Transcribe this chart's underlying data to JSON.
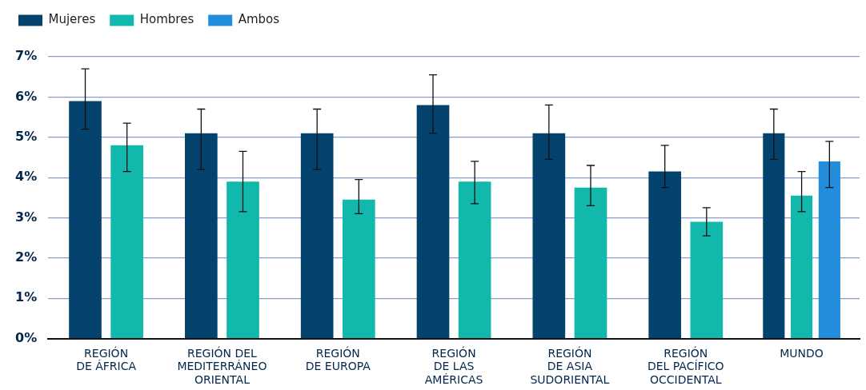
{
  "chart_data": {
    "type": "bar",
    "categories": [
      "REGIÓN\nDE ÁFRICA",
      "REGIÓN DEL\nMEDITERRÁNEO\nORIENTAL",
      "REGIÓN\nDE EUROPA",
      "REGIÓN\nDE LAS\nAMÉRICAS",
      "REGIÓN\nDE ASIA\nSUDORIENTAL",
      "REGIÓN\nDEL PACÍFICO\nOCCIDENTAL",
      "MUNDO"
    ],
    "series": [
      {
        "name": "Mujeres",
        "color": "#03436e",
        "values": [
          5.9,
          5.1,
          5.1,
          5.8,
          5.1,
          4.15,
          5.1
        ],
        "errors": [
          [
            5.2,
            6.7
          ],
          [
            4.2,
            5.7
          ],
          [
            4.2,
            5.7
          ],
          [
            5.1,
            6.55
          ],
          [
            4.45,
            5.8
          ],
          [
            3.75,
            4.8
          ],
          [
            4.45,
            5.7
          ]
        ]
      },
      {
        "name": "Hombres",
        "color": "#12b8ac",
        "values": [
          4.8,
          3.9,
          3.45,
          3.9,
          3.75,
          2.9,
          3.55
        ],
        "errors": [
          [
            4.15,
            5.35
          ],
          [
            3.15,
            4.65
          ],
          [
            3.1,
            3.95
          ],
          [
            3.35,
            4.4
          ],
          [
            3.3,
            4.3
          ],
          [
            2.55,
            3.25
          ],
          [
            3.15,
            4.15
          ]
        ]
      },
      {
        "name": "Ambos",
        "color": "#228ddc",
        "values": [
          null,
          null,
          null,
          null,
          null,
          null,
          4.4
        ],
        "errors": [
          null,
          null,
          null,
          null,
          null,
          null,
          [
            3.75,
            4.9
          ]
        ]
      }
    ],
    "ylim": [
      0,
      7
    ],
    "yticks": [
      {
        "value": 0,
        "label": "0%"
      },
      {
        "value": 1,
        "label": "1%"
      },
      {
        "value": 2,
        "label": "2%"
      },
      {
        "value": 3,
        "label": "3%"
      },
      {
        "value": 4,
        "label": "4%"
      },
      {
        "value": 5,
        "label": "5%"
      },
      {
        "value": 6,
        "label": "6%"
      },
      {
        "value": 7,
        "label": "7%"
      }
    ],
    "grid": "y",
    "legend": "top left"
  }
}
